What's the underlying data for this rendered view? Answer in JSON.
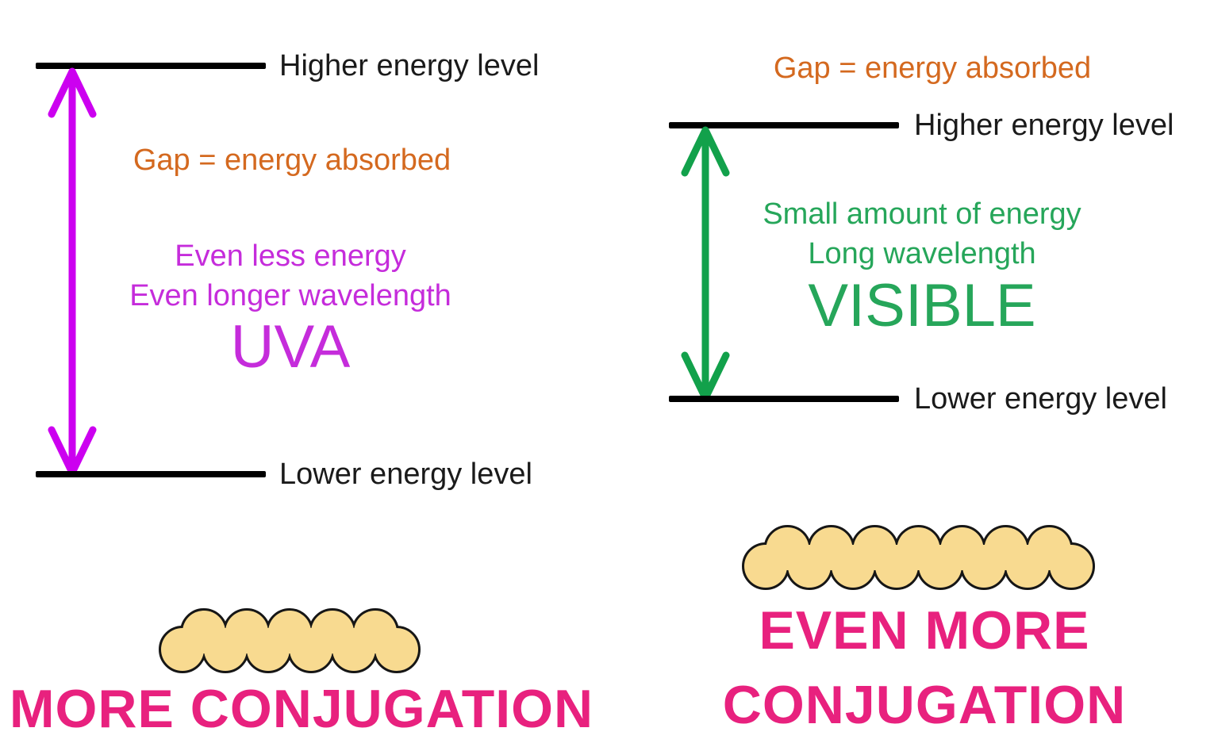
{
  "colors": {
    "text_black": "#1a1a1a",
    "level_line": "#000000",
    "orange": "#D4691F",
    "magenta_arrow": "#CC00F0",
    "magenta_text": "#C52CDB",
    "green_arrow": "#12A14B",
    "green_text": "#26A65A",
    "pink": "#E8217E",
    "molecule_fill": "#F8DA90",
    "molecule_outline": "#161616"
  },
  "left_panel": {
    "higher_level_label": "Higher energy level",
    "gap_label": "Gap = energy absorbed",
    "energy_note_line1": "Even less energy",
    "energy_note_line2": "Even longer wavelength",
    "band_label": "UVA",
    "lower_level_label": "Lower energy level",
    "conjugation_label": "MORE CONJUGATION",
    "molecule_unit_count": 11
  },
  "right_panel": {
    "gap_label": "Gap = energy absorbed",
    "higher_level_label": "Higher energy level",
    "energy_note_line1": "Small amount of energy",
    "energy_note_line2": "Long wavelength",
    "band_label": "VISIBLE",
    "lower_level_label": "Lower energy level",
    "conjugation_label_line1": "EVEN MORE",
    "conjugation_label_line2": "CONJUGATION",
    "molecule_unit_count": 15
  }
}
